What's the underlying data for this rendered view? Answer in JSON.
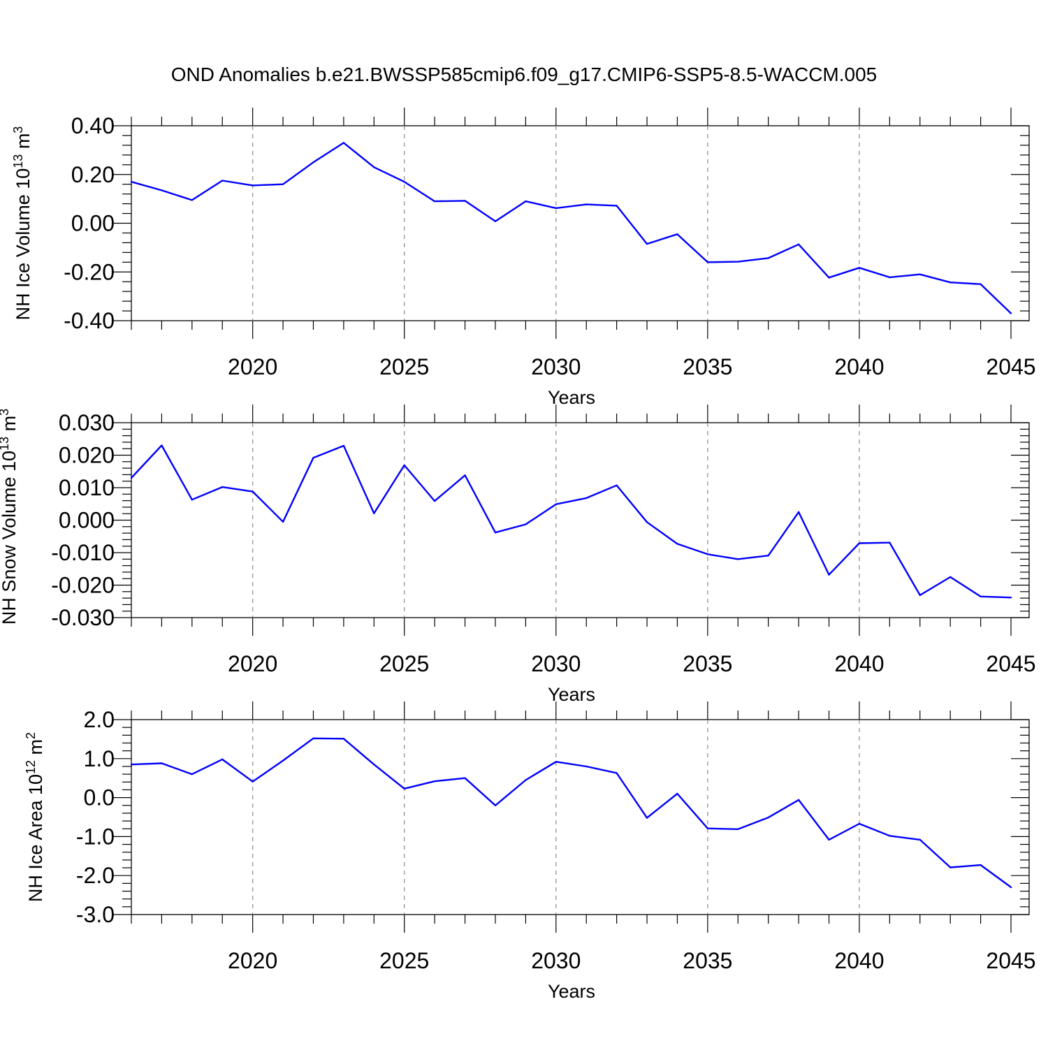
{
  "figure_title": "OND Anomalies b.e21.BWSSP585cmip6.f09_g17.CMIP6-SSP5-8.5-WACCM.005",
  "chart_data": [
    {
      "type": "line",
      "ylabel": {
        "base": "NH Ice Volume 10",
        "exponent": "13",
        "unit": " m",
        "unit_exponent": "3"
      },
      "xlabel": "Years",
      "xlim": [
        2016,
        2045
      ],
      "ylim": [
        -0.4,
        0.4
      ],
      "xticks": [
        2020,
        2025,
        2030,
        2035,
        2040,
        2045
      ],
      "xtick_labels": [
        "2020",
        "2025",
        "2030",
        "2035",
        "2040",
        "2045"
      ],
      "yticks": [
        0.4,
        0.2,
        0.0,
        -0.2,
        -0.4
      ],
      "ytick_labels": [
        "0.40",
        "0.20",
        "0.00",
        "-0.20",
        "-0.40"
      ],
      "grid": "vertical dashed at major x ticks",
      "line_color": "#0000ff",
      "x": [
        2016,
        2017,
        2018,
        2019,
        2020,
        2021,
        2022,
        2023,
        2024,
        2025,
        2026,
        2027,
        2028,
        2029,
        2030,
        2031,
        2032,
        2033,
        2034,
        2035,
        2036,
        2037,
        2038,
        2039,
        2040,
        2041,
        2042,
        2043,
        2044,
        2045
      ],
      "y": [
        0.17,
        0.135,
        0.095,
        0.175,
        0.155,
        0.16,
        0.25,
        0.33,
        0.23,
        0.17,
        0.09,
        0.092,
        0.008,
        0.09,
        0.062,
        0.077,
        0.072,
        -0.085,
        -0.045,
        -0.16,
        -0.158,
        -0.143,
        -0.087,
        -0.223,
        -0.183,
        -0.222,
        -0.21,
        -0.243,
        -0.25,
        -0.37
      ]
    },
    {
      "type": "line",
      "ylabel": {
        "base": "NH Snow Volume 10",
        "exponent": "13",
        "unit": " m",
        "unit_exponent": "3"
      },
      "xlabel": "Years",
      "xlim": [
        2016,
        2045
      ],
      "ylim": [
        -0.03,
        0.03
      ],
      "xticks": [
        2020,
        2025,
        2030,
        2035,
        2040,
        2045
      ],
      "xtick_labels": [
        "2020",
        "2025",
        "2030",
        "2035",
        "2040",
        "2045"
      ],
      "yticks": [
        0.03,
        0.02,
        0.01,
        0.0,
        -0.01,
        -0.02,
        -0.03
      ],
      "ytick_labels": [
        "0.030",
        "0.020",
        "0.010",
        "0.000",
        "-0.010",
        "-0.020",
        "-0.030"
      ],
      "grid": "vertical dashed at major x ticks",
      "line_color": "#0000ff",
      "x": [
        2016,
        2017,
        2018,
        2019,
        2020,
        2021,
        2022,
        2023,
        2024,
        2025,
        2026,
        2027,
        2028,
        2029,
        2030,
        2031,
        2032,
        2033,
        2034,
        2035,
        2036,
        2037,
        2038,
        2039,
        2040,
        2041,
        2042,
        2043,
        2044,
        2045
      ],
      "y": [
        0.013,
        0.023,
        0.0063,
        0.0102,
        0.0088,
        -0.0005,
        0.0192,
        0.0229,
        0.0021,
        0.0169,
        0.0059,
        0.0138,
        -0.0038,
        -0.0013,
        0.0049,
        0.0068,
        0.0107,
        -0.0006,
        -0.0073,
        -0.0105,
        -0.012,
        -0.0109,
        0.0025,
        -0.0168,
        -0.0071,
        -0.0069,
        -0.0231,
        -0.0175,
        -0.0235,
        -0.0238
      ]
    },
    {
      "type": "line",
      "ylabel": {
        "base": "NH Ice Area 10",
        "exponent": "12",
        "unit": " m",
        "unit_exponent": "2"
      },
      "xlabel": "Years",
      "xlim": [
        2016,
        2045
      ],
      "ylim": [
        -3.0,
        2.0
      ],
      "xticks": [
        2020,
        2025,
        2030,
        2035,
        2040,
        2045
      ],
      "xtick_labels": [
        "2020",
        "2025",
        "2030",
        "2035",
        "2040",
        "2045"
      ],
      "yticks": [
        2.0,
        1.0,
        0.0,
        -1.0,
        -2.0,
        -3.0
      ],
      "ytick_labels": [
        "2.0",
        "1.0",
        "0.0",
        "-1.0",
        "-2.0",
        "-3.0"
      ],
      "grid": "vertical dashed at major x ticks",
      "line_color": "#0000ff",
      "x": [
        2016,
        2017,
        2018,
        2019,
        2020,
        2021,
        2022,
        2023,
        2024,
        2025,
        2026,
        2027,
        2028,
        2029,
        2030,
        2031,
        2032,
        2033,
        2034,
        2035,
        2036,
        2037,
        2038,
        2039,
        2040,
        2041,
        2042,
        2043,
        2044,
        2045
      ],
      "y": [
        0.85,
        0.88,
        0.6,
        0.98,
        0.41,
        0.95,
        1.52,
        1.51,
        0.85,
        0.23,
        0.42,
        0.5,
        -0.2,
        0.45,
        0.92,
        0.8,
        0.63,
        -0.52,
        0.1,
        -0.79,
        -0.81,
        -0.51,
        -0.06,
        -1.08,
        -0.67,
        -0.98,
        -1.08,
        -1.79,
        -1.73,
        -2.3
      ]
    }
  ]
}
